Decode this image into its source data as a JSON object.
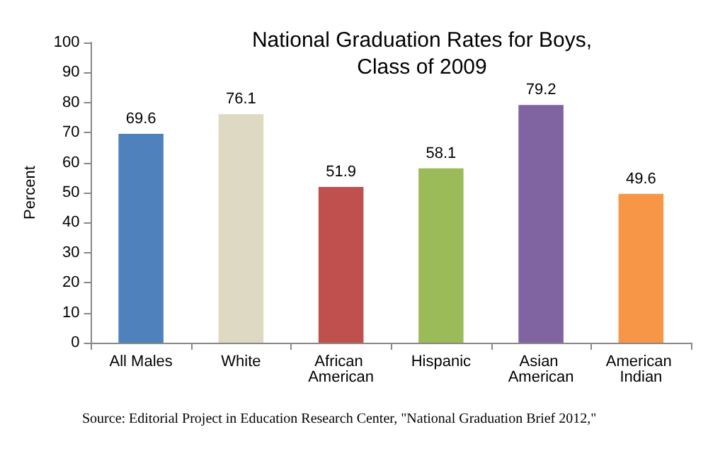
{
  "chart_data": {
    "type": "bar",
    "title": "National Graduation Rates for Boys,\nClass of 2009",
    "ylabel": "Percent",
    "categories": [
      "All Males",
      "White",
      "African American",
      "Hispanic",
      "Asian American",
      "American Indian"
    ],
    "values": [
      69.6,
      76.1,
      51.9,
      58.1,
      79.2,
      49.6
    ],
    "colors": [
      "#4f81bd",
      "#ddd9c3",
      "#c0504d",
      "#9bbb59",
      "#8064a2",
      "#f79646"
    ],
    "ylim": [
      0,
      100
    ],
    "yticks": [
      0,
      10,
      20,
      30,
      40,
      50,
      60,
      70,
      80,
      90,
      100
    ],
    "grid": false,
    "data_labels": true,
    "annotations": [
      "Source: Editorial Project in Education Research Center, \"National Graduation Brief 2012,\""
    ]
  }
}
